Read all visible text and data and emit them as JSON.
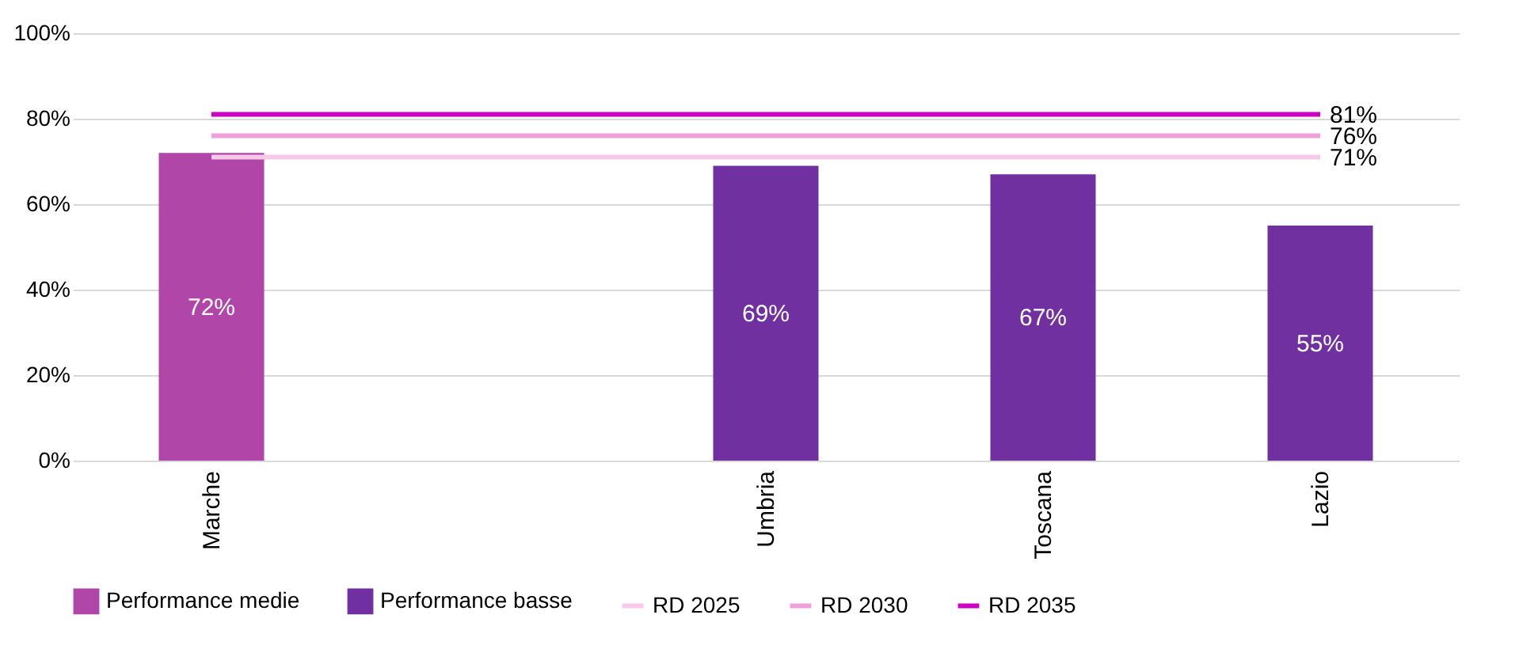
{
  "chart_data": {
    "type": "bar",
    "categories": [
      "Marche",
      null,
      "Umbria",
      "Toscana",
      "Lazio"
    ],
    "series": [
      {
        "name": "Performance medie",
        "color": "#b046a8",
        "values": [
          72,
          null,
          null,
          null,
          null
        ],
        "value_labels": [
          "72%",
          null,
          null,
          null,
          null
        ]
      },
      {
        "name": "Performance basse",
        "color": "#7030a0",
        "values": [
          null,
          null,
          69,
          67,
          55
        ],
        "value_labels": [
          null,
          null,
          "69%",
          "67%",
          "55%"
        ]
      },
      {
        "name": "RD 2025",
        "type": "line",
        "color": "#f8c8e8",
        "values": [
          71,
          71,
          71,
          71,
          71
        ],
        "value_labels": [
          null,
          null,
          null,
          null,
          "71%"
        ]
      },
      {
        "name": "RD 2030",
        "type": "line",
        "color": "#f0a0d8",
        "values": [
          76,
          76,
          76,
          76,
          76
        ],
        "value_labels": [
          null,
          null,
          null,
          null,
          "76%"
        ]
      },
      {
        "name": "RD 2035",
        "type": "line",
        "color": "#cc00c0",
        "values": [
          81,
          81,
          81,
          81,
          81
        ],
        "value_labels": [
          null,
          null,
          null,
          null,
          "81%"
        ]
      }
    ],
    "ylim": [
      0,
      100
    ],
    "yticks": [
      {
        "value": 0,
        "label": "0%"
      },
      {
        "value": 20,
        "label": "20%"
      },
      {
        "value": 40,
        "label": "40%"
      },
      {
        "value": 60,
        "label": "60%"
      },
      {
        "value": 80,
        "label": "80%"
      },
      {
        "value": 100,
        "label": "100%"
      }
    ],
    "grid": "y",
    "legend": "bottom"
  }
}
